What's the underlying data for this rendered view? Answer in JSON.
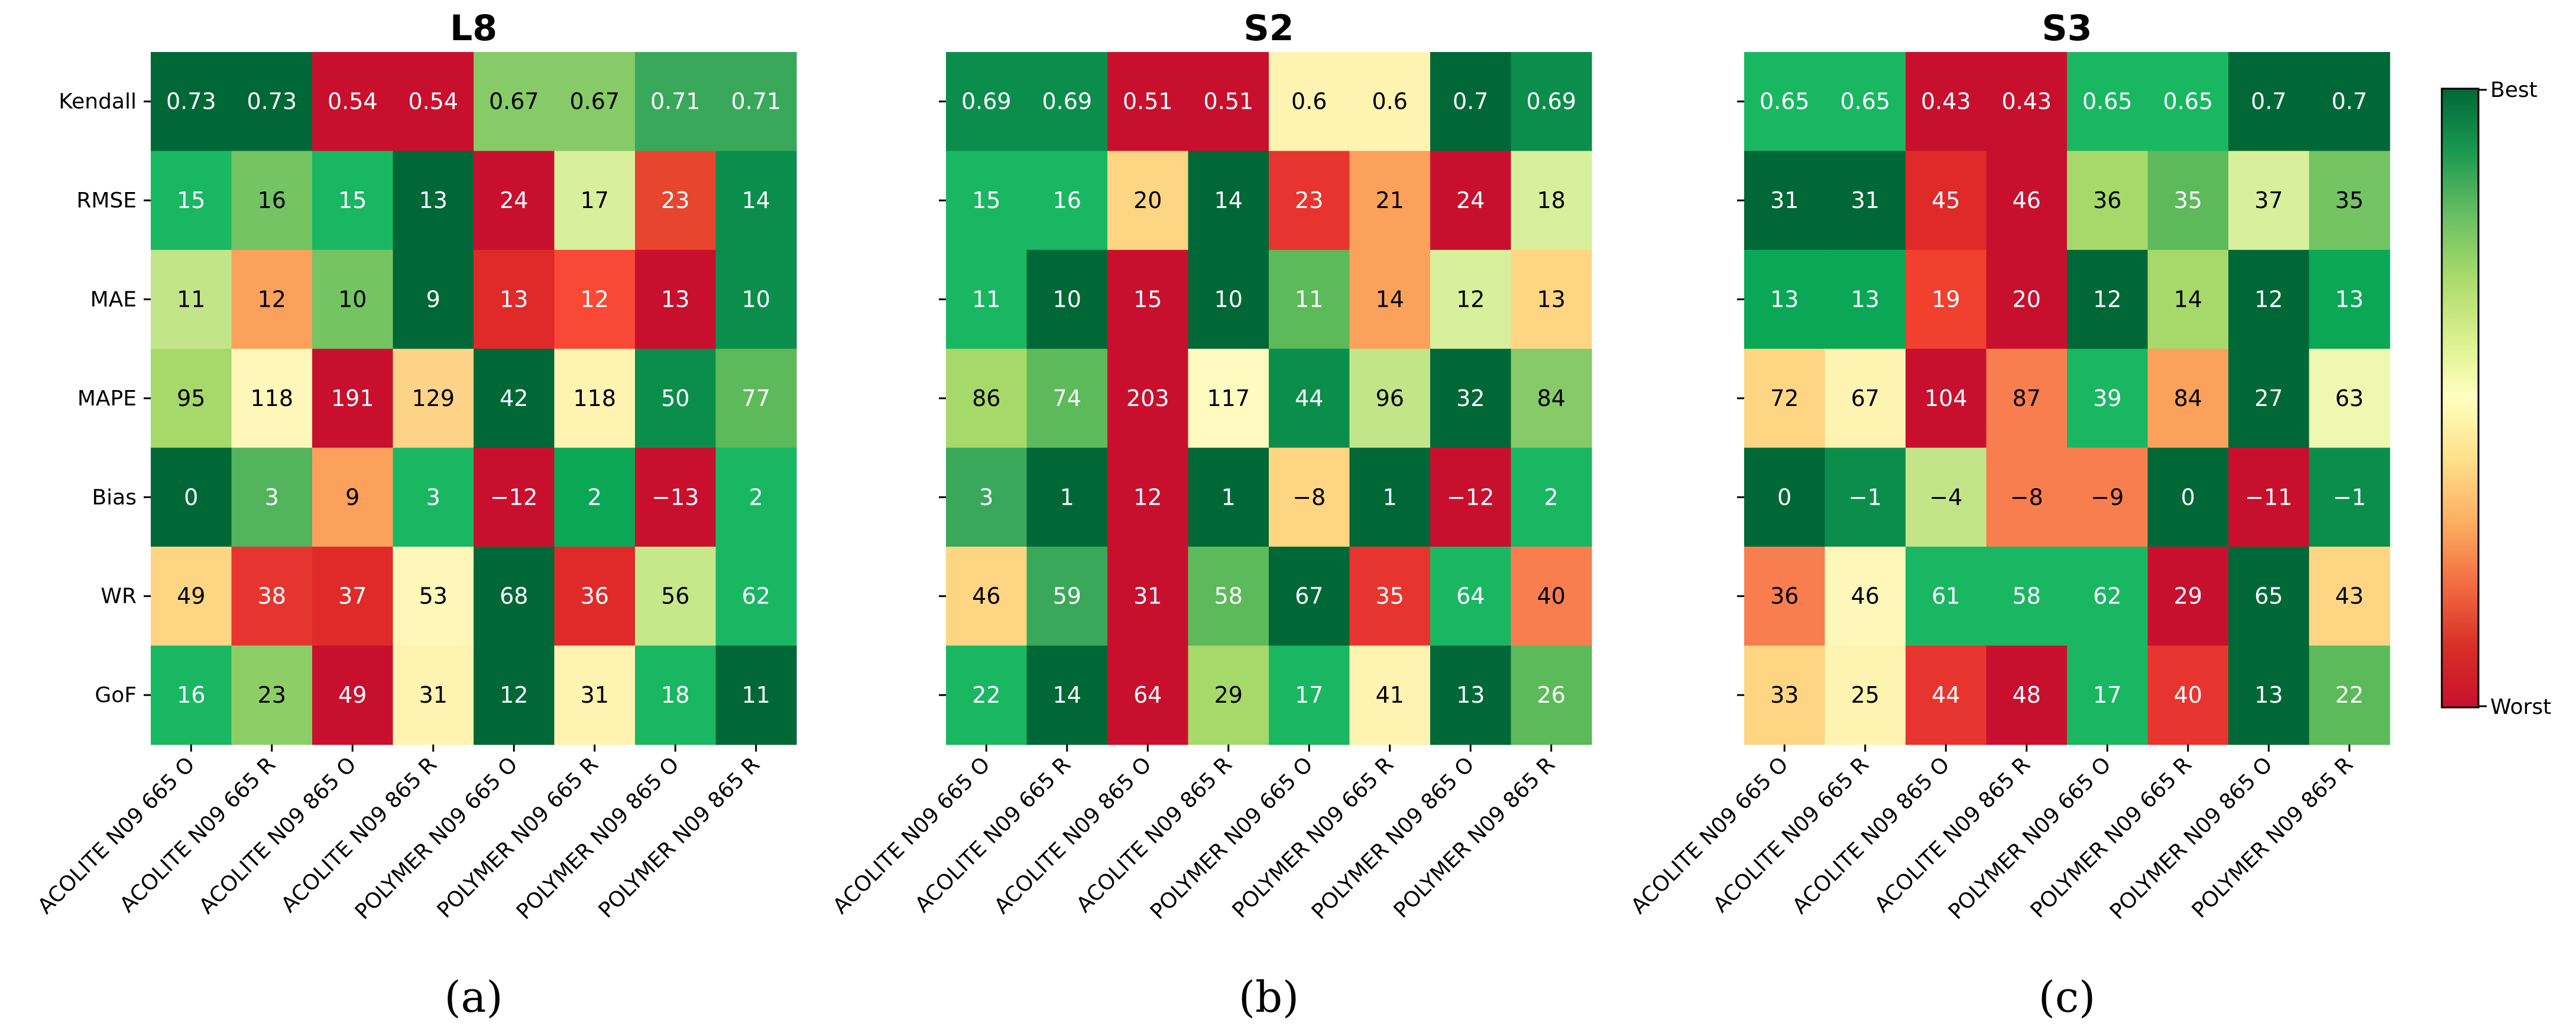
{
  "chart_data": [
    {
      "type": "heatmap",
      "title": "L8",
      "caption": "(a)",
      "rows": [
        "Kendall",
        "RMSE",
        "MAE",
        "MAPE",
        "Bias",
        "WR",
        "GoF"
      ],
      "columns": [
        "ACOLITE N09 665 O",
        "ACOLITE N09 665 R",
        "ACOLITE N09 865 O",
        "ACOLITE N09 865 R",
        "POLYMER N09 665 O",
        "POLYMER N09 665 R",
        "POLYMER N09 865 O",
        "POLYMER N09 865 R"
      ],
      "values": [
        [
          "0.73",
          "0.73",
          "0.54",
          "0.54",
          "0.67",
          "0.67",
          "0.71",
          "0.71"
        ],
        [
          "15",
          "16",
          "15",
          "13",
          "24",
          "17",
          "23",
          "14"
        ],
        [
          "11",
          "12",
          "10",
          "9",
          "13",
          "12",
          "13",
          "10"
        ],
        [
          "95",
          "118",
          "191",
          "129",
          "42",
          "118",
          "50",
          "77"
        ],
        [
          "0",
          "3",
          "9",
          "3",
          "−12",
          "2",
          "−13",
          "2"
        ],
        [
          "49",
          "38",
          "37",
          "53",
          "68",
          "36",
          "56",
          "62"
        ],
        [
          "16",
          "23",
          "49",
          "31",
          "12",
          "31",
          "18",
          "11"
        ]
      ],
      "colors": [
        [
          "#006837",
          "#006837",
          "#c8102e",
          "#c8102e",
          "#86cb67",
          "#86cb67",
          "#3aa85a",
          "#3aa85a"
        ],
        [
          "#1ab763",
          "#74c464",
          "#1ab763",
          "#006837",
          "#c8102e",
          "#d8ef9b",
          "#e8452f",
          "#0b8e4c"
        ],
        [
          "#c3e58a",
          "#fba15b",
          "#74c464",
          "#006837",
          "#e02a2a",
          "#f94835",
          "#c8102e",
          "#0b8e4c"
        ],
        [
          "#a6d96a",
          "#fff7ba",
          "#c8102e",
          "#fdd387",
          "#006837",
          "#fff3b2",
          "#0b8e4c",
          "#5cba5a"
        ],
        [
          "#006837",
          "#52b45c",
          "#fba15b",
          "#1ab763",
          "#c8102e",
          "#0aa856",
          "#c8102e",
          "#1ab763"
        ],
        [
          "#fed683",
          "#e8342e",
          "#e02a2a",
          "#fff7ba",
          "#006837",
          "#e02a2a",
          "#c7e88a",
          "#1ab763"
        ],
        [
          "#1ab763",
          "#8dcf67",
          "#c8102e",
          "#fff3b2",
          "#006837",
          "#fff3b2",
          "#1ab763",
          "#006837"
        ]
      ]
    },
    {
      "type": "heatmap",
      "title": "S2",
      "caption": "(b)",
      "rows": [
        "Kendall",
        "RMSE",
        "MAE",
        "MAPE",
        "Bias",
        "WR",
        "GoF"
      ],
      "columns": [
        "ACOLITE N09 665 O",
        "ACOLITE N09 665 R",
        "ACOLITE N09 865 O",
        "ACOLITE N09 865 R",
        "POLYMER N09 665 O",
        "POLYMER N09 665 R",
        "POLYMER N09 865 O",
        "POLYMER N09 865 R"
      ],
      "values": [
        [
          "0.69",
          "0.69",
          "0.51",
          "0.51",
          "0.6",
          "0.6",
          "0.7",
          "0.69"
        ],
        [
          "15",
          "16",
          "20",
          "14",
          "23",
          "21",
          "24",
          "18"
        ],
        [
          "11",
          "10",
          "15",
          "10",
          "11",
          "14",
          "12",
          "13"
        ],
        [
          "86",
          "74",
          "203",
          "117",
          "44",
          "96",
          "32",
          "84"
        ],
        [
          "3",
          "1",
          "12",
          "1",
          "−8",
          "1",
          "−12",
          "2"
        ],
        [
          "46",
          "59",
          "31",
          "58",
          "67",
          "35",
          "64",
          "40"
        ],
        [
          "22",
          "14",
          "64",
          "29",
          "17",
          "41",
          "13",
          "26"
        ]
      ],
      "colors": [
        [
          "#0b8e4c",
          "#0b8e4c",
          "#c8102e",
          "#c8102e",
          "#fff3b2",
          "#fff3b2",
          "#006837",
          "#0b8e4c"
        ],
        [
          "#1ab763",
          "#1ab763",
          "#fed683",
          "#006837",
          "#e8342e",
          "#fba15b",
          "#c8102e",
          "#d8ef9b"
        ],
        [
          "#1ab763",
          "#006837",
          "#c8102e",
          "#006837",
          "#5cba5a",
          "#fba15b",
          "#d8ef9b",
          "#fed683"
        ],
        [
          "#a6d96a",
          "#5cba5a",
          "#c8102e",
          "#fffac0",
          "#0b8e4c",
          "#c3e58a",
          "#006837",
          "#86cb67"
        ],
        [
          "#3aa85a",
          "#006837",
          "#c8102e",
          "#006837",
          "#fed683",
          "#006837",
          "#c8102e",
          "#1ab763"
        ],
        [
          "#fed683",
          "#3aa85a",
          "#c8102e",
          "#5cba5a",
          "#006837",
          "#e8342e",
          "#1ab763",
          "#f87e4f"
        ],
        [
          "#1ab763",
          "#006837",
          "#c8102e",
          "#a6d96a",
          "#1ab763",
          "#fff3b2",
          "#006837",
          "#5cba5a"
        ]
      ]
    },
    {
      "type": "heatmap",
      "title": "S3",
      "caption": "(c)",
      "rows": [
        "Kendall",
        "RMSE",
        "MAE",
        "MAPE",
        "Bias",
        "WR",
        "GoF"
      ],
      "columns": [
        "ACOLITE N09 665 O",
        "ACOLITE N09 665 R",
        "ACOLITE N09 865 O",
        "ACOLITE N09 865 R",
        "POLYMER N09 665 O",
        "POLYMER N09 665 R",
        "POLYMER N09 865 O",
        "POLYMER N09 865 R"
      ],
      "values": [
        [
          "0.65",
          "0.65",
          "0.43",
          "0.43",
          "0.65",
          "0.65",
          "0.7",
          "0.7"
        ],
        [
          "31",
          "31",
          "45",
          "46",
          "36",
          "35",
          "37",
          "35"
        ],
        [
          "13",
          "13",
          "19",
          "20",
          "12",
          "14",
          "12",
          "13"
        ],
        [
          "72",
          "67",
          "104",
          "87",
          "39",
          "84",
          "27",
          "63"
        ],
        [
          "0",
          "−1",
          "−4",
          "−8",
          "−9",
          "0",
          "−11",
          "−1"
        ],
        [
          "36",
          "46",
          "61",
          "58",
          "62",
          "29",
          "65",
          "43"
        ],
        [
          "33",
          "25",
          "44",
          "48",
          "17",
          "40",
          "13",
          "22"
        ]
      ],
      "colors": [
        [
          "#1ab763",
          "#1ab763",
          "#c8102e",
          "#c8102e",
          "#1ab763",
          "#1ab763",
          "#006837",
          "#006837"
        ],
        [
          "#006837",
          "#006837",
          "#e02a2a",
          "#c8102e",
          "#a6d96a",
          "#5cba5a",
          "#d8ef9b",
          "#74c464"
        ],
        [
          "#0aa856",
          "#0aa856",
          "#f2402f",
          "#c8102e",
          "#006837",
          "#a6d96a",
          "#006837",
          "#0aa856"
        ],
        [
          "#fed683",
          "#fff3b2",
          "#c8102e",
          "#f87e4f",
          "#1ab763",
          "#fba15b",
          "#006837",
          "#eef8b0"
        ],
        [
          "#006837",
          "#0b8e4c",
          "#c3e58a",
          "#f87e4f",
          "#f87e4f",
          "#006837",
          "#c8102e",
          "#0b8e4c"
        ],
        [
          "#f87e4f",
          "#fff7ba",
          "#1ab763",
          "#1ab763",
          "#1ab763",
          "#c8102e",
          "#006837",
          "#fed683"
        ],
        [
          "#fed683",
          "#fff3b2",
          "#e8342e",
          "#c8102e",
          "#1ab763",
          "#e8342e",
          "#006837",
          "#5cba5a"
        ]
      ]
    }
  ],
  "colorbar": {
    "top_label": "Best",
    "bottom_label": "Worst",
    "colors": [
      "#006837",
      "#1a9850",
      "#66bd63",
      "#a6d96a",
      "#d9ef8b",
      "#ffffbf",
      "#fee08b",
      "#fdae61",
      "#f46d43",
      "#d73027",
      "#c8102e"
    ]
  }
}
